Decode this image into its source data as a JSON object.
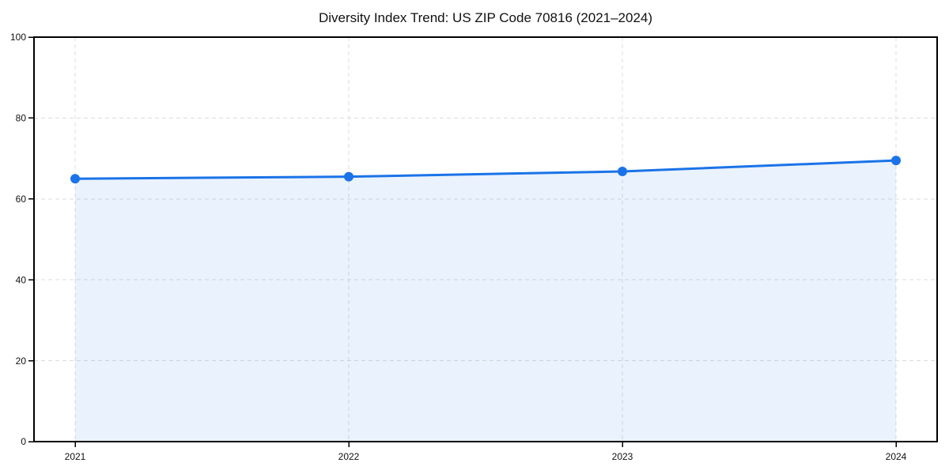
{
  "chart_data": {
    "type": "area",
    "title": "Diversity Index Trend: US ZIP Code 70816 (2021–2024)",
    "categories": [
      "2021",
      "2022",
      "2023",
      "2024"
    ],
    "series": [
      {
        "name": "Diversity Index",
        "values": [
          65.0,
          65.5,
          66.8,
          69.5
        ]
      }
    ],
    "xlabel": "",
    "ylabel": "",
    "ylim": [
      0,
      100
    ],
    "yticks": [
      0,
      20,
      40,
      60,
      80,
      100
    ],
    "grid": true,
    "grid_style": "dashed",
    "legend": false,
    "marker": "circle",
    "colors": {
      "line": "#1a73e8",
      "marker": "#1a73e8",
      "fill": "#1a73e8",
      "fill_opacity": 0.09,
      "grid": "#dcdcdc",
      "axis": "#000000",
      "text": "#111111"
    }
  }
}
